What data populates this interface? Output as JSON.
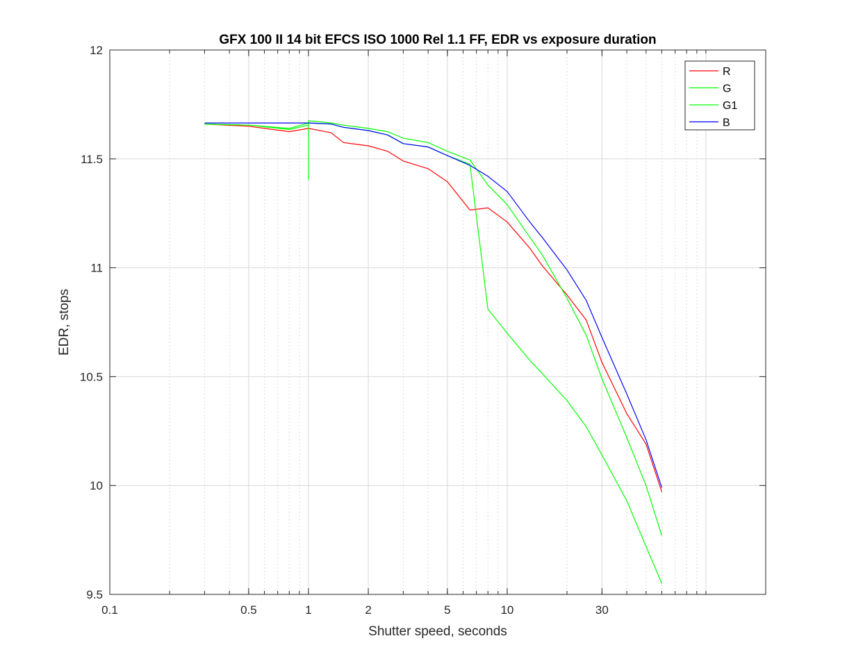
{
  "chart_data": {
    "type": "line",
    "title": "GFX 100 II 14 bit EFCS ISO 1000 Rel 1.1 FF, EDR vs exposure duration",
    "xlabel": "Shutter speed, seconds",
    "ylabel": "EDR, stops",
    "xscale": "log",
    "xlim": [
      0.1,
      200
    ],
    "ylim": [
      9.5,
      12
    ],
    "xticks": [
      0.1,
      0.5,
      1,
      2,
      5,
      10,
      30
    ],
    "xtick_labels": [
      "0.1",
      "0.5",
      "1",
      "2",
      "5",
      "10",
      "30"
    ],
    "yticks": [
      9.5,
      10,
      10.5,
      11,
      11.5,
      12
    ],
    "ytick_labels": [
      "9.5",
      "10",
      "10.5",
      "11",
      "11.5",
      "12"
    ],
    "grid": true,
    "legend_position": "top-right",
    "series": [
      {
        "name": "R",
        "color": "#ff0000",
        "x": [
          0.3,
          0.5,
          0.8,
          1,
          1.3,
          1.5,
          2,
          2.5,
          3,
          4,
          5,
          6.5,
          8,
          10,
          13,
          15,
          20,
          25,
          30,
          40,
          50,
          60
        ],
        "y": [
          11.66,
          11.65,
          11.625,
          11.64,
          11.62,
          11.575,
          11.56,
          11.535,
          11.49,
          11.455,
          11.395,
          11.265,
          11.275,
          11.21,
          11.09,
          11.01,
          10.875,
          10.76,
          10.565,
          10.33,
          10.19,
          9.97
        ]
      },
      {
        "name": "G",
        "color": "#00ff00",
        "x": [
          0.3,
          0.5,
          0.8,
          1,
          1,
          1,
          1.3,
          1.5,
          2,
          2.5,
          3,
          4,
          5,
          6.5,
          8,
          10,
          13,
          15,
          20,
          25,
          30,
          40,
          50,
          60
        ],
        "y": [
          11.66,
          11.655,
          11.635,
          11.655,
          11.405,
          11.675,
          11.665,
          11.655,
          11.64,
          11.625,
          11.595,
          11.575,
          11.535,
          11.495,
          11.38,
          11.29,
          11.14,
          11.06,
          10.86,
          10.69,
          10.49,
          10.22,
          10.0,
          9.77
        ]
      },
      {
        "name": "G1",
        "color": "#00ff00",
        "x": [
          0.3,
          0.5,
          0.8,
          1,
          1.3,
          1.5,
          2,
          2.5,
          3,
          4,
          5,
          6.5,
          8,
          10,
          13,
          15,
          20,
          25,
          30,
          40,
          50,
          60
        ],
        "y": [
          11.66,
          11.655,
          11.64,
          11.665,
          11.66,
          11.645,
          11.63,
          11.61,
          11.57,
          11.555,
          11.515,
          11.475,
          10.81,
          10.7,
          10.575,
          10.515,
          10.39,
          10.27,
          10.14,
          9.93,
          9.72,
          9.55
        ]
      },
      {
        "name": "B",
        "color": "#0000ff",
        "x": [
          0.3,
          0.5,
          0.8,
          1,
          1.3,
          1.5,
          2,
          2.5,
          3,
          4,
          5,
          6.5,
          8,
          10,
          13,
          15,
          20,
          25,
          30,
          40,
          50,
          60
        ],
        "y": [
          11.665,
          11.665,
          11.665,
          11.665,
          11.66,
          11.645,
          11.63,
          11.61,
          11.57,
          11.555,
          11.515,
          11.47,
          11.42,
          11.35,
          11.21,
          11.14,
          10.99,
          10.85,
          10.68,
          10.42,
          10.21,
          9.99
        ]
      }
    ]
  }
}
